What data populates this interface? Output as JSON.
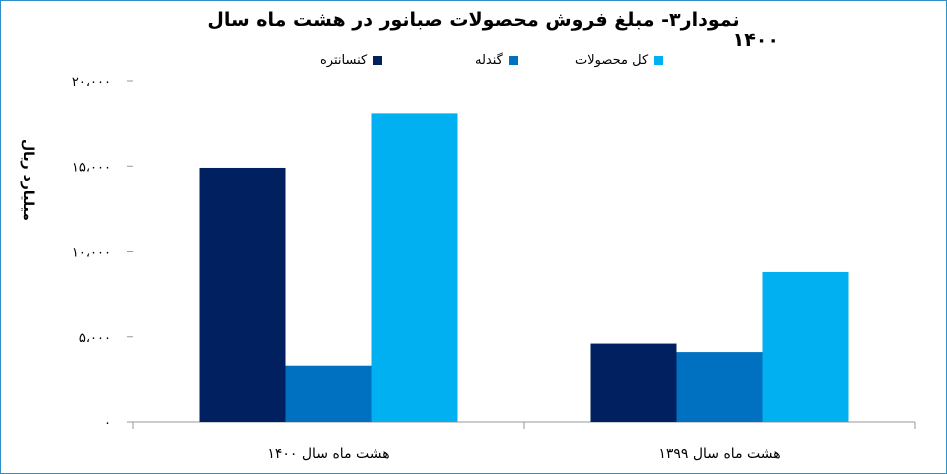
{
  "chart_data": {
    "type": "bar",
    "title": "نمودار۳- مبلغ فروش محصولات صبانور در هشت ماه سال",
    "title_year": "۱۴۰۰",
    "ylabel": "میلیارد ریال",
    "xlabel": "",
    "ylim": [
      0,
      20000
    ],
    "yticks": [
      0,
      5000,
      10000,
      15000,
      20000
    ],
    "ytick_labels": [
      "۰",
      "۵،۰۰۰",
      "۱۰،۰۰۰",
      "۱۵،۰۰۰",
      "۲۰،۰۰۰"
    ],
    "categories": [
      "هشت ماه سال ۱۴۰۰",
      "هشت ماه سال ۱۳۹۹"
    ],
    "series": [
      {
        "name": "کنسانتره",
        "color": "#002060",
        "values": [
          14900,
          4600
        ]
      },
      {
        "name": "گندله",
        "color": "#0070c0",
        "values": [
          3300,
          4100
        ]
      },
      {
        "name": "کل محصولات",
        "color": "#00b0f0",
        "values": [
          18100,
          8800
        ]
      }
    ],
    "legend_position": "top",
    "grid": false
  }
}
